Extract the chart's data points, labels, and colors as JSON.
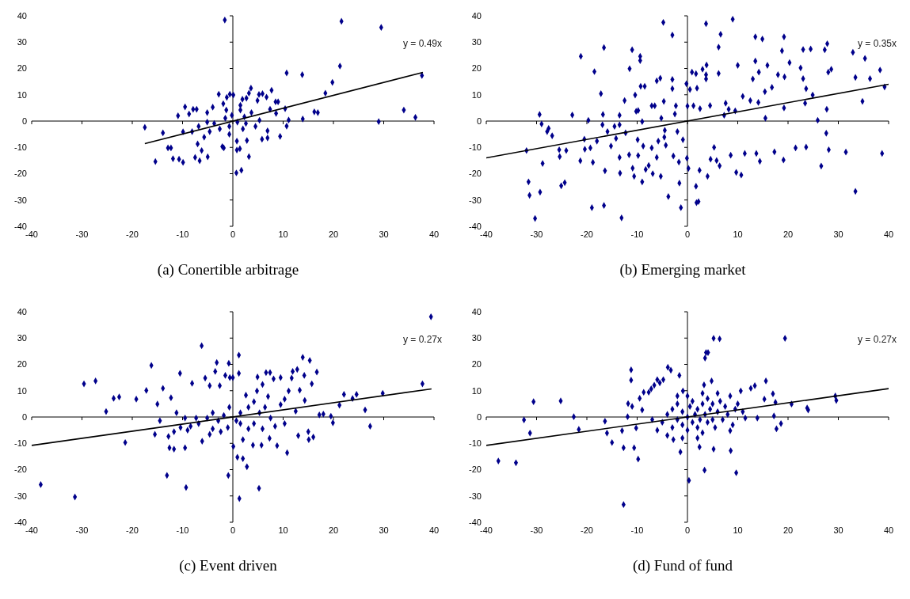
{
  "chart_data": [
    {
      "type": "scatter",
      "title": "(a) Conertible arbitrage",
      "xlim": [
        -40,
        40
      ],
      "ylim": [
        -40,
        40
      ],
      "xticks": [
        -40,
        -30,
        -20,
        -10,
        0,
        10,
        20,
        30,
        40
      ],
      "yticks": [
        -40,
        -30,
        -20,
        -10,
        0,
        10,
        20,
        30,
        40
      ],
      "annotations": [
        "y = 0.49x"
      ],
      "series": [
        {
          "marker": "diamond",
          "color": "#00008b",
          "x": [
            -17.5,
            -13.9,
            -15.4,
            -12.9,
            -12.3,
            -11.9,
            -10.7,
            -9.9,
            -10.9,
            -9.5,
            -9.9,
            -8.7,
            -7.9,
            -7.2,
            -7.5,
            -6.6,
            -6.2,
            -5,
            -7,
            -2.1,
            -1.8,
            -2.8,
            -1.6,
            -1.9,
            -1.2,
            -0.6,
            0.1,
            0.7,
            1.7,
            0.8,
            1.4,
            0.8,
            1.5,
            1.9,
            2.7,
            3.6,
            3.2,
            3.2,
            2.8,
            5.2,
            5.9,
            4.9,
            7.7,
            6.7,
            8.5,
            9,
            6.9,
            6.9,
            5.8,
            9.4,
            10.7,
            10.4,
            11.1,
            10.7,
            13.8,
            13.9,
            16.2,
            16.9,
            18.4,
            19.8,
            21.3,
            21.6,
            29.5,
            29,
            34,
            36.3,
            37.6,
            8.6,
            7.4,
            5.3,
            3.7,
            2.3,
            0.9,
            -0.2,
            -0.7,
            -1.5,
            -2.6,
            -3.7,
            -4.6,
            -5.1,
            -4,
            -5.7,
            -6.8,
            -8.1,
            -0.7,
            2,
            2.6,
            4.5,
            -1.3,
            1.5,
            -5.1
          ],
          "values": [
            -2.4,
            -4.5,
            -15.4,
            -10.2,
            -10.2,
            -14.3,
            -14.5,
            -15.7,
            2,
            5.4,
            -4.1,
            2.7,
            4.5,
            4.5,
            -13.8,
            -15.1,
            -11.2,
            -13.6,
            -8.7,
            -9.7,
            -10.2,
            10.2,
            38.4,
            6.6,
            9,
            10.2,
            9.9,
            -19.7,
            -18.7,
            -11,
            -10.5,
            -7.6,
            6,
            8.3,
            8.7,
            12.5,
            10.6,
            -13.5,
            -7.4,
            10.1,
            10.4,
            7.8,
            11.7,
            9.1,
            7.3,
            7.3,
            -3.7,
            -6.4,
            -6.9,
            -5.8,
            -1.9,
            4.7,
            0.4,
            18.3,
            17.6,
            0.8,
            3.5,
            3.2,
            10.6,
            14.7,
            20.9,
            37.9,
            35.6,
            -0.2,
            4.2,
            1.4,
            17.3,
            2.9,
            4.5,
            0.3,
            3.2,
            1.6,
            -0.4,
            2.2,
            -2,
            1.1,
            -3,
            -0.9,
            -4,
            3.2,
            5.3,
            -6.1,
            -2,
            -4,
            -5,
            -3,
            -0.9,
            -2,
            4.2,
            4.2,
            -0.4
          ]
        },
        {
          "type": "line",
          "color": "#000000",
          "x": [
            -17.5,
            37.8
          ],
          "values": [
            -8.6,
            18.5
          ]
        }
      ]
    },
    {
      "type": "scatter",
      "title": "(b) Emerging market",
      "xlim": [
        -40,
        40
      ],
      "ylim": [
        -40,
        40
      ],
      "xticks": [
        -40,
        -30,
        -20,
        -10,
        0,
        10,
        20,
        30,
        40
      ],
      "yticks": [
        -40,
        -30,
        -20,
        -10,
        0,
        10,
        20,
        30,
        40
      ],
      "annotations": [
        "y = 0.35x"
      ],
      "series": [
        {
          "marker": "diamond",
          "color": "#00008b",
          "x": [
            -0.2,
            0,
            0.2,
            0.5,
            0.9,
            1.2,
            1.7,
            1.9,
            1.7,
            1.8,
            2.2,
            2.4,
            2.5,
            3,
            3.7,
            3.8,
            3.7,
            3.7,
            4,
            4.5,
            4.6,
            5.3,
            5.8,
            6.2,
            6.2,
            6.6,
            6.4,
            7.3,
            7.6,
            8.2,
            8.6,
            9,
            9.5,
            9.7,
            10,
            11,
            10.7,
            11.4,
            12.5,
            13,
            13.5,
            13.5,
            13.7,
            14.2,
            14.1,
            14.4,
            14.9,
            15.4,
            15.5,
            15.9,
            16.8,
            17.3,
            18,
            18.8,
            19.2,
            19.3,
            19.2,
            19.1,
            20.3,
            21.5,
            22.5,
            23,
            23,
            23.6,
            23.4,
            23.6,
            24.5,
            24.9,
            25.9,
            26.6,
            27.3,
            27.8,
            27.6,
            27.7,
            28,
            28.1,
            28.6,
            31.5,
            32.9,
            33.4,
            33.4,
            34.8,
            35.3,
            36.3,
            38.3,
            38.7,
            39.2,
            -32,
            -31.6,
            -31.4,
            -30.3,
            -29.4,
            -29.3,
            -29,
            -28.8,
            -27.9,
            -27.6,
            -26.9,
            -25.5,
            -25.4,
            -25.1,
            -24.4,
            -24.1,
            -22.9,
            -21.2,
            -21.3,
            -20.5,
            -19.7,
            -20.4,
            -19.3,
            -19,
            -18.8,
            -18.5,
            -18,
            -17.2,
            -16.9,
            -16.8,
            -16.6,
            -16.6,
            -16.4,
            -15.9,
            -15.2,
            -14.5,
            -13.5,
            -14.2,
            -13.5,
            -13.4,
            -13.1,
            -13.5,
            -12.5,
            -12.3,
            -11.5,
            -11.6,
            -11,
            -10.9,
            -10.6,
            -10.4,
            -10.2,
            -9.9,
            -9.8,
            -9.8,
            -9.4,
            -9.4,
            -9.3,
            -9,
            -9,
            -8.8,
            -8.5,
            -8.3,
            -7.7,
            -7.1,
            -7.1,
            -6.9,
            -6.5,
            -6.1,
            -5.8,
            -6.1,
            -5.4,
            -5.3,
            -5.2,
            -4.8,
            -4.7,
            -4.6,
            -4.5,
            -4.3,
            -3.8,
            -3,
            -3,
            -3,
            -2.8,
            -2.5,
            -2.3,
            -2,
            -1.7,
            -1.6,
            -1.3,
            -0.9,
            -0.1
          ],
          "values": [
            14.2,
            5.7,
            -18,
            12,
            18.6,
            5.8,
            18,
            12.5,
            -24.8,
            -31,
            -30.6,
            -18.7,
            4.7,
            19.7,
            37,
            21.3,
            17.6,
            16,
            -21,
            5.9,
            -14.5,
            -10,
            -15,
            28.1,
            18.1,
            33,
            -17,
            2.2,
            6.8,
            4.5,
            -13,
            38.7,
            3.9,
            -19.5,
            21.2,
            9.4,
            -20.5,
            -12.3,
            7.8,
            16,
            32,
            22.8,
            -12.3,
            18.6,
            7.1,
            -15.3,
            31.2,
            11.2,
            1.1,
            21.2,
            12.8,
            -11.7,
            17.6,
            26.7,
            32,
            16.8,
            5,
            -14.8,
            22.2,
            -10.2,
            20.2,
            27.2,
            16.1,
            12.3,
            6.8,
            -9.9,
            27.4,
            9.9,
            0.3,
            -17.1,
            27.1,
            29.4,
            -4.6,
            4.5,
            18.6,
            -10.9,
            19.7,
            -11.8,
            26.1,
            16.6,
            -26.7,
            7.5,
            23.8,
            16.1,
            19.4,
            -12.3,
            13,
            -11.2,
            -23.1,
            -28.2,
            -37,
            2.5,
            -27,
            -1.1,
            -16.1,
            -4,
            -2.8,
            -5.6,
            -10.9,
            -13.5,
            -24.6,
            -23.4,
            -11.2,
            2.3,
            24.6,
            -15.1,
            -6.9,
            0.3,
            -10.7,
            -10.2,
            -32.9,
            -15.7,
            18.8,
            -7.6,
            10.4,
            -1.4,
            2.5,
            27.9,
            -32.1,
            -18.9,
            -4,
            -9.5,
            -2,
            -1.4,
            -6.6,
            -13.8,
            -19.8,
            -36.8,
            2.2,
            7.8,
            -4.5,
            19.9,
            -12.8,
            27.1,
            -17.9,
            -21,
            9.9,
            3.7,
            -7.1,
            4,
            -13.1,
            24.6,
            23,
            13.2,
            -23.1,
            -0.2,
            -9.5,
            13.2,
            -18.4,
            -16.9,
            5.8,
            -10.2,
            -20,
            5.8,
            -13.8,
            -7.6,
            15.3,
            16.3,
            -21,
            1.1,
            37.5,
            7.5,
            -6.1,
            -3.5,
            -9.2,
            -28.7,
            32.7,
            15.8,
            12.3,
            -13.3,
            2.7,
            5.8,
            -4,
            -15.6,
            -23.6,
            -32.9,
            -7.1,
            -14.1
          ]
        },
        {
          "type": "line",
          "color": "#000000",
          "x": [
            -40,
            40
          ],
          "values": [
            -14,
            14
          ]
        }
      ]
    },
    {
      "type": "scatter",
      "title": "(c) Event driven",
      "xlim": [
        -40,
        40
      ],
      "ylim": [
        -40,
        40
      ],
      "xticks": [
        -40,
        -30,
        -20,
        -10,
        0,
        10,
        20,
        30,
        40
      ],
      "yticks": [
        -40,
        -30,
        -20,
        -10,
        0,
        10,
        20,
        30,
        40
      ],
      "annotations": [
        "y = 0.27x"
      ],
      "series": [
        {
          "marker": "diamond",
          "color": "#00008b",
          "x": [
            -38.2,
            -31.4,
            -29.6,
            -27.3,
            -25.2,
            -23.7,
            -22.6,
            -21.4,
            -19.2,
            -17.2,
            -16.2,
            -15.5,
            -15,
            -14.5,
            -13.9,
            -13.1,
            -12.8,
            -12.6,
            -12.3,
            -11.7,
            -10.5,
            -10.4,
            -9.5,
            -9.3,
            -9,
            -8.1,
            -7.3,
            -6.2,
            -6.1,
            -5.5,
            -4.6,
            -4,
            -3.5,
            -3.2,
            -2.6,
            -1.5,
            -0.8,
            -0.9,
            -0.7,
            -0.6,
            0,
            0.1,
            1.2,
            1.2,
            1.3,
            0.9,
            2,
            2.8,
            2,
            1.5,
            2.6,
            4,
            4.9,
            5.2,
            5.7,
            5.9,
            6.6,
            7.4,
            7.3,
            8.1,
            8.8,
            9.5,
            10.3,
            10.8,
            11.1,
            11.7,
            11.9,
            12.8,
            12.5,
            13,
            13.3,
            13.9,
            14.2,
            14.3,
            15,
            15.1,
            15.3,
            15.7,
            16,
            16.7,
            17.2,
            18,
            19.5,
            19.9,
            21.2,
            22.1,
            23.8,
            24.6,
            26.3,
            27.3,
            29.8,
            37.7,
            39.4,
            -6.8,
            -5.1,
            -4,
            -2.9,
            -1.8,
            -4.6,
            -2.4,
            -1,
            0.7,
            1.5,
            3.1,
            4.2,
            4.8,
            5.3,
            6.4,
            7,
            7.5,
            8.4,
            9.5,
            10.3,
            4.2,
            3.1,
            5.9,
            -8.4,
            -9.5,
            -11.7,
            -11.2
          ],
          "values": [
            -25.7,
            -30.4,
            12.6,
            13.7,
            2.1,
            7.1,
            7.6,
            -9.7,
            6.8,
            10.1,
            19.6,
            -6.6,
            4.9,
            -1.4,
            10.9,
            -22.2,
            -7.4,
            -11.7,
            7.3,
            -12.2,
            16.6,
            -4,
            -11.7,
            -26.8,
            -5,
            12.8,
            -0.4,
            27.1,
            -9.2,
            14.8,
            11.9,
            -4.5,
            17.3,
            20.7,
            11.9,
            15.8,
            20.4,
            -22.2,
            3.7,
            15,
            15,
            -11.2,
            23.5,
            16.6,
            -31,
            -15.3,
            -15.8,
            -18.9,
            -8.6,
            -2.5,
            8.3,
            -10.7,
            15.2,
            -27.1,
            -10.7,
            12.4,
            16.9,
            16.9,
            -8.1,
            14.5,
            -10.9,
            15,
            -2.5,
            -13.6,
            9.9,
            14.8,
            17.3,
            18.1,
            2.2,
            -7.1,
            10.2,
            22.7,
            15.8,
            6.3,
            -5.6,
            -8.6,
            21.5,
            12.6,
            -7.6,
            17.1,
            0.8,
            1.1,
            0.3,
            -2.2,
            4.5,
            8.6,
            7,
            8.6,
            2.7,
            -3.5,
            9,
            12.6,
            38.1,
            -2.5,
            -0.4,
            1.6,
            -1.4,
            0.6,
            -6.6,
            -5.6,
            -4,
            -1.4,
            1.6,
            3.7,
            5.8,
            9.9,
            1.6,
            3.7,
            7.8,
            -0.4,
            -3.5,
            4.7,
            6.8,
            -2.5,
            -4.5,
            -4.5,
            -3.5,
            -0.4,
            -5.6,
            1.6
          ]
        },
        {
          "type": "line",
          "color": "#000000",
          "x": [
            -40,
            39.5
          ],
          "values": [
            -10.8,
            10.7
          ]
        }
      ]
    },
    {
      "type": "scatter",
      "title": "(d) Fund of fund",
      "xlim": [
        -40,
        40
      ],
      "ylim": [
        -40,
        40
      ],
      "xticks": [
        -40,
        -30,
        -20,
        -10,
        0,
        10,
        20,
        30,
        40
      ],
      "yticks": [
        -40,
        -30,
        -20,
        -10,
        0,
        10,
        20,
        30,
        40
      ],
      "annotations": [
        "y = 0.27x"
      ],
      "series": [
        {
          "marker": "diamond",
          "color": "#00008b",
          "x": [
            -37.6,
            -34.1,
            -32.5,
            -31.3,
            -30.6,
            -25.2,
            -22.6,
            -21.6,
            -16.4,
            -16,
            -15,
            -13,
            -12.7,
            -12.7,
            -11.9,
            -11.8,
            -11.2,
            -11.2,
            -11,
            -10.6,
            -10.2,
            -9.8,
            -9.5,
            -9,
            -8.7,
            -7.7,
            -7.2,
            -6.6,
            -6,
            -5.5,
            -4.8,
            -3.9,
            -3.3,
            -2.8,
            -1.6,
            -1.4,
            -0.9,
            0.3,
            2.4,
            3.4,
            3.3,
            3.5,
            3.7,
            4.1,
            4.8,
            5.2,
            6.4,
            5.2,
            8.6,
            9.7,
            8.5,
            10.6,
            11.5,
            12.6,
            13.4,
            13.9,
            15.6,
            15.3,
            17,
            17.2,
            17.5,
            17.7,
            18.6,
            19.4,
            20.7,
            23.8,
            24,
            29.4,
            29.6,
            -5,
            -4,
            -3,
            -3,
            -2,
            -2,
            -1,
            -1,
            0,
            0,
            0.5,
            1,
            1,
            1.5,
            2,
            2,
            2.5,
            3,
            3,
            3.5,
            4,
            4,
            4.5,
            5,
            5,
            5.5,
            6,
            6.5,
            7,
            7.5,
            8,
            8.5,
            9,
            9.5,
            10,
            11,
            -6,
            -7,
            -4,
            -1,
            2,
            0,
            -2,
            6,
            3
          ],
          "values": [
            -16.7,
            -17.4,
            -1.1,
            -6.1,
            5.8,
            6.1,
            0.1,
            -4.7,
            -1.6,
            -6.1,
            -9.7,
            -5.2,
            -11.7,
            -33.3,
            0.1,
            5.1,
            17.9,
            14,
            4,
            -11.7,
            -4.2,
            -16,
            7.1,
            2.7,
            9.4,
            9.4,
            10.7,
            12.1,
            14.2,
            13,
            14.2,
            18.9,
            17.8,
            -8.6,
            15.8,
            -13.3,
            9.9,
            -24.1,
            -11.4,
            -20.2,
            12.2,
            22.4,
            24.5,
            24.5,
            13.7,
            29.9,
            29.7,
            -12.2,
            -12.8,
            -21.2,
            -5.2,
            9.9,
            -0.4,
            10.9,
            11.9,
            -0.4,
            13.7,
            6.8,
            8.8,
            0.4,
            5.6,
            -4.5,
            -2.5,
            29.9,
            4.9,
            3.4,
            2.7,
            8,
            6.3,
            -2,
            1,
            -4,
            3,
            -1,
            5,
            -3,
            2,
            0,
            -5,
            4,
            -2,
            6,
            1,
            -4,
            3,
            -1,
            5,
            -6,
            1,
            -2,
            7,
            3,
            -1,
            5,
            -4,
            2,
            6,
            -1,
            4,
            1,
            8,
            -3,
            3,
            5,
            2,
            -5,
            -1,
            -7,
            -8,
            -8,
            8,
            8,
            9,
            9
          ]
        },
        {
          "type": "line",
          "color": "#000000",
          "x": [
            -40,
            40
          ],
          "values": [
            -10.8,
            10.8
          ]
        }
      ]
    }
  ]
}
